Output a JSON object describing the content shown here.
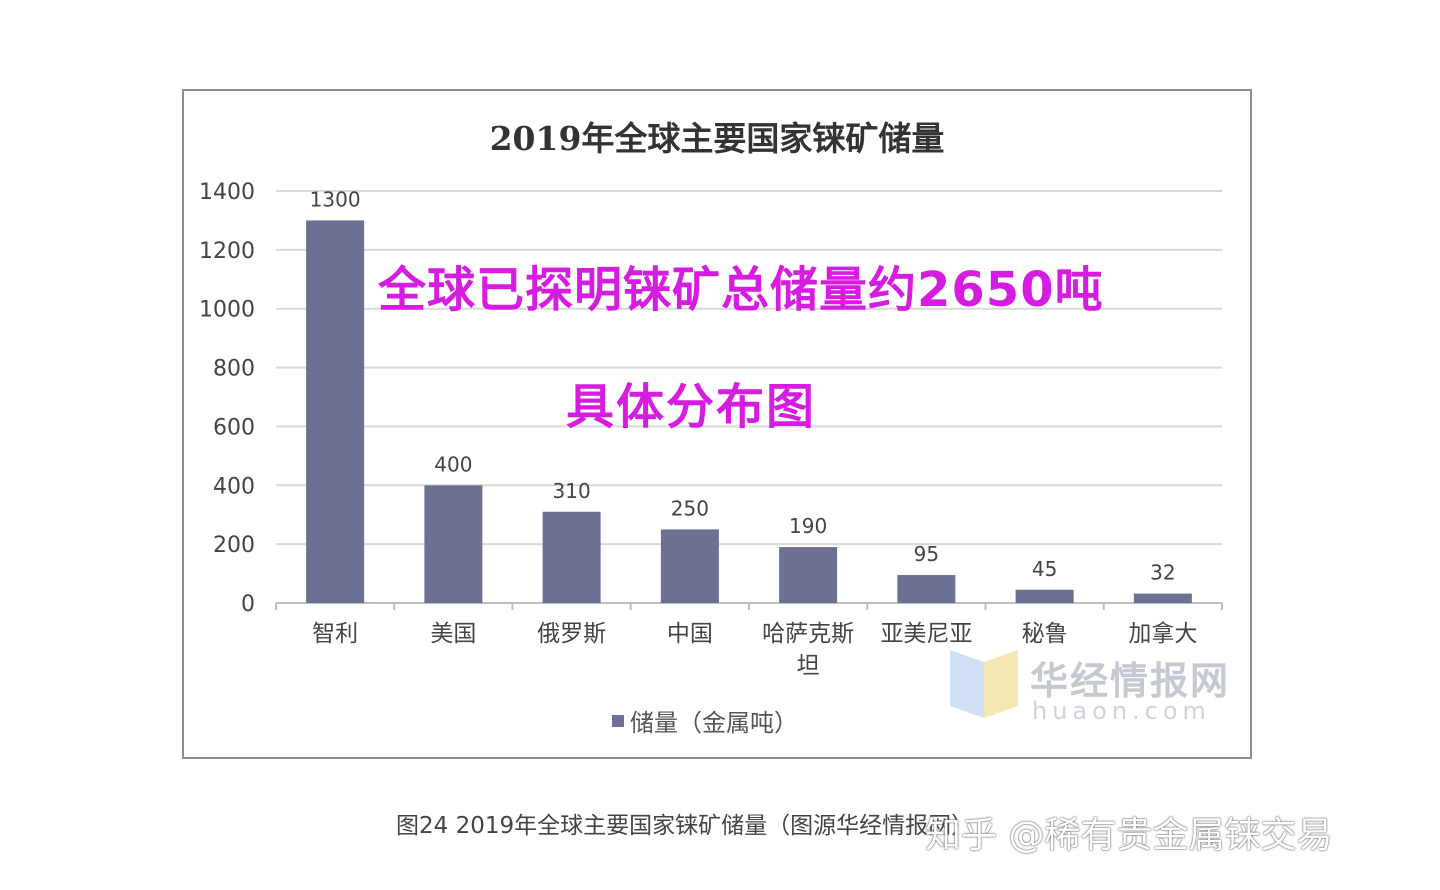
{
  "chart_data": {
    "type": "bar",
    "title": "2019年全球主要国家铼矿储量",
    "categories": [
      "智利",
      "美国",
      "俄罗斯",
      "中国",
      "哈萨克斯坦",
      "亚美尼亚",
      "秘鲁",
      "加拿大"
    ],
    "category_lines": [
      [
        "智利"
      ],
      [
        "美国"
      ],
      [
        "俄罗斯"
      ],
      [
        "中国"
      ],
      [
        "哈萨克斯",
        "坦"
      ],
      [
        "亚美尼亚"
      ],
      [
        "秘鲁"
      ],
      [
        "加拿大"
      ]
    ],
    "series": [
      {
        "name": "储量（金属吨）",
        "values": [
          1300,
          400,
          310,
          250,
          190,
          95,
          45,
          32
        ]
      }
    ],
    "data_labels": [
      "1300",
      "400",
      "310",
      "250",
      "190",
      "95",
      "45",
      "32"
    ],
    "ylim": [
      0,
      1400
    ],
    "yticks": [
      0,
      200,
      400,
      600,
      800,
      1000,
      1200,
      1400
    ],
    "ytick_labels": [
      "0",
      "200",
      "400",
      "600",
      "800",
      "1000",
      "1200",
      "1400"
    ],
    "grid": true,
    "legend": "bottom",
    "bar_color": "#6b7094"
  },
  "overlay": {
    "line1": "全球已探明铼矿总储量约2650吨",
    "line2": "具体分布图",
    "color": "#d51ce0"
  },
  "watermark": {
    "name": "华经情报网",
    "url": "huaon.com"
  },
  "caption": "图24 2019年全球主要国家铼矿储量（图源华经情报网）",
  "source_mark": "知乎 @稀有贵金属铼交易"
}
